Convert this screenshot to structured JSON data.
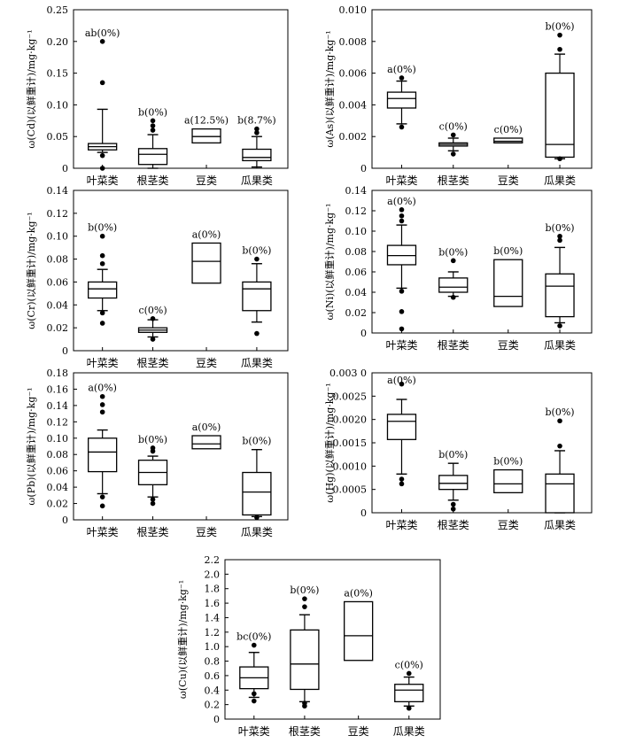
{
  "chart_data": [
    {
      "type": "boxplot",
      "ylabel": "ω(Cd)(以鲜重计)/mg·kg⁻¹",
      "ylim": [
        0,
        0.25
      ],
      "yticks": [
        "0",
        "0.05",
        "0.10",
        "0.15",
        "0.20",
        "0.25"
      ],
      "categories": [
        "叶菜类",
        "根茎类",
        "豆类",
        "瓜果类"
      ],
      "boxes": [
        {
          "q1": 0.029,
          "median": 0.034,
          "q3": 0.039,
          "whisker_low": 0.025,
          "whisker_high": 0.093,
          "outliers": [
            0.0,
            0.02,
            0.135,
            0.2
          ]
        },
        {
          "q1": 0.006,
          "median": 0.022,
          "q3": 0.031,
          "whisker_low": 0.0,
          "whisker_high": 0.053,
          "outliers": [
            0.06,
            0.067,
            0.075
          ]
        },
        {
          "q1": 0.04,
          "median": 0.05,
          "q3": 0.062
        },
        {
          "q1": 0.012,
          "median": 0.017,
          "q3": 0.03,
          "whisker_low": 0.002,
          "whisker_high": 0.05,
          "outliers": [
            0.056,
            0.062
          ]
        }
      ],
      "annotations": [
        "ab(0%)",
        "b(0%)",
        "a(12.5%)",
        "b(8.7%)"
      ]
    },
    {
      "type": "boxplot",
      "ylabel": "ω(As)(以鲜重计)/mg·kg⁻¹",
      "ylim": [
        0,
        0.01
      ],
      "yticks": [
        "0",
        "0.002",
        "0.004",
        "0.006",
        "0.008",
        "0.010"
      ],
      "categories": [
        "叶菜类",
        "根茎类",
        "豆类",
        "瓜果类"
      ],
      "boxes": [
        {
          "q1": 0.0038,
          "median": 0.0044,
          "q3": 0.0048,
          "whisker_low": 0.0028,
          "whisker_high": 0.0055,
          "outliers": [
            0.0026,
            0.0057
          ]
        },
        {
          "q1": 0.0014,
          "median": 0.0015,
          "q3": 0.0016,
          "whisker_low": 0.0011,
          "whisker_high": 0.0019,
          "outliers": [
            0.0009,
            0.0021
          ]
        },
        {
          "q1": 0.0016,
          "median": 0.0017,
          "q3": 0.0019
        },
        {
          "q1": 0.0007,
          "median": 0.0015,
          "q3": 0.006,
          "whisker_low": 0.0006,
          "whisker_high": 0.0072,
          "outliers": [
            0.0006,
            0.0075,
            0.0084
          ]
        }
      ],
      "annotations": [
        "a(0%)",
        "c(0%)",
        "c(0%)",
        "b(0%)"
      ]
    },
    {
      "type": "boxplot",
      "ylabel": "ω(Cr)(以鲜重计)/mg·kg⁻¹",
      "ylim": [
        0,
        0.14
      ],
      "yticks": [
        "0",
        "0.02",
        "0.04",
        "0.06",
        "0.08",
        "0.10",
        "0.12",
        "0.14"
      ],
      "categories": [
        "叶菜类",
        "根茎类",
        "豆类",
        "瓜果类"
      ],
      "boxes": [
        {
          "q1": 0.046,
          "median": 0.054,
          "q3": 0.06,
          "whisker_low": 0.035,
          "whisker_high": 0.071,
          "outliers": [
            0.024,
            0.033,
            0.076,
            0.083,
            0.1
          ]
        },
        {
          "q1": 0.016,
          "median": 0.018,
          "q3": 0.02,
          "whisker_low": 0.012,
          "whisker_high": 0.027,
          "outliers": [
            0.01,
            0.028
          ]
        },
        {
          "q1": 0.059,
          "median": 0.078,
          "q3": 0.094
        },
        {
          "q1": 0.035,
          "median": 0.054,
          "q3": 0.06,
          "whisker_low": 0.025,
          "whisker_high": 0.076,
          "outliers": [
            0.015,
            0.08
          ]
        }
      ],
      "annotations": [
        "b(0%)",
        "c(0%)",
        "a(0%)",
        "b(0%)"
      ]
    },
    {
      "type": "boxplot",
      "ylabel": "ω(Ni)(以鲜重计)/mg·kg⁻¹",
      "ylim": [
        0,
        0.14
      ],
      "yticks": [
        "0",
        "0.02",
        "0.04",
        "0.06",
        "0.08",
        "0.10",
        "0.12",
        "0.14"
      ],
      "categories": [
        "叶菜类",
        "根茎类",
        "豆类",
        "瓜果类"
      ],
      "boxes": [
        {
          "q1": 0.067,
          "median": 0.076,
          "q3": 0.086,
          "whisker_low": 0.044,
          "whisker_high": 0.106,
          "outliers": [
            0.004,
            0.021,
            0.041,
            0.11,
            0.115,
            0.121
          ]
        },
        {
          "q1": 0.04,
          "median": 0.045,
          "q3": 0.054,
          "whisker_low": 0.036,
          "whisker_high": 0.06,
          "outliers": [
            0.035,
            0.071
          ]
        },
        {
          "q1": 0.026,
          "median": 0.036,
          "q3": 0.072
        },
        {
          "q1": 0.016,
          "median": 0.046,
          "q3": 0.058,
          "whisker_low": 0.01,
          "whisker_high": 0.084,
          "outliers": [
            0.007,
            0.091,
            0.095
          ]
        }
      ],
      "annotations": [
        "a(0%)",
        "b(0%)",
        "b(0%)",
        "b(0%)"
      ]
    },
    {
      "type": "boxplot",
      "ylabel": "ω(Pb)(以鲜重计)/mg·kg⁻¹",
      "ylim": [
        0,
        0.18
      ],
      "yticks": [
        "0",
        "0.02",
        "0.04",
        "0.06",
        "0.08",
        "0.10",
        "0.12",
        "0.14",
        "0.16",
        "0.18"
      ],
      "categories": [
        "叶菜类",
        "根茎类",
        "豆类",
        "瓜果类"
      ],
      "boxes": [
        {
          "q1": 0.059,
          "median": 0.083,
          "q3": 0.1,
          "whisker_low": 0.032,
          "whisker_high": 0.11,
          "outliers": [
            0.017,
            0.028,
            0.132,
            0.141,
            0.151
          ]
        },
        {
          "q1": 0.043,
          "median": 0.058,
          "q3": 0.073,
          "whisker_low": 0.028,
          "whisker_high": 0.078,
          "outliers": [
            0.02,
            0.025,
            0.084,
            0.088
          ]
        },
        {
          "q1": 0.087,
          "median": 0.093,
          "q3": 0.103
        },
        {
          "q1": 0.006,
          "median": 0.034,
          "q3": 0.058,
          "whisker_low": 0.004,
          "whisker_high": 0.086,
          "outliers": [
            0.003
          ]
        }
      ],
      "annotations": [
        "a(0%)",
        "b(0%)",
        "a(0%)",
        "b(0%)"
      ]
    },
    {
      "type": "boxplot",
      "ylabel": "ω(Hg)(以鲜重计)/mg·kg⁻¹",
      "ylim": [
        0,
        0.003
      ],
      "yticks": [
        "0",
        "0.0005",
        "0.0010",
        "0.0015",
        "0.0020",
        "0.0025",
        "0.003 0"
      ],
      "categories": [
        "叶菜类",
        "根茎类",
        "豆类",
        "瓜果类"
      ],
      "boxes": [
        {
          "q1": 0.00157,
          "median": 0.00196,
          "q3": 0.00211,
          "whisker_low": 0.00083,
          "whisker_high": 0.00243,
          "outliers": [
            0.00062,
            0.00072,
            0.00276
          ]
        },
        {
          "q1": 0.0005,
          "median": 0.00063,
          "q3": 0.0008,
          "whisker_low": 0.00027,
          "whisker_high": 0.00106,
          "outliers": [
            8e-05,
            0.00018
          ]
        },
        {
          "q1": 0.00043,
          "median": 0.00062,
          "q3": 0.00092
        },
        {
          "q1": 0.0,
          "median": 0.00062,
          "q3": 0.00083,
          "whisker_low": 0.0,
          "whisker_high": 0.00133,
          "outliers": [
            0.00143,
            0.00197
          ]
        }
      ],
      "annotations": [
        "a(0%)",
        "b(0%)",
        "b(0%)",
        "b(0%)"
      ]
    },
    {
      "type": "boxplot",
      "ylabel": "ω(Cu)(以鲜重计)/mg·kg⁻¹",
      "ylim": [
        0,
        2.2
      ],
      "yticks": [
        "0",
        "0.2",
        "0.4",
        "0.6",
        "0.8",
        "1.0",
        "1.2",
        "1.4",
        "1.6",
        "1.8",
        "2.0",
        "2.2"
      ],
      "categories": [
        "叶菜类",
        "根茎类",
        "豆类",
        "瓜果类"
      ],
      "boxes": [
        {
          "q1": 0.42,
          "median": 0.57,
          "q3": 0.72,
          "whisker_low": 0.3,
          "whisker_high": 0.92,
          "outliers": [
            0.25,
            0.35,
            1.02
          ]
        },
        {
          "q1": 0.41,
          "median": 0.76,
          "q3": 1.23,
          "whisker_low": 0.24,
          "whisker_high": 1.44,
          "outliers": [
            0.18,
            0.22,
            1.55,
            1.66
          ]
        },
        {
          "q1": 0.81,
          "median": 1.15,
          "q3": 1.62
        },
        {
          "q1": 0.24,
          "median": 0.4,
          "q3": 0.48,
          "whisker_low": 0.18,
          "whisker_high": 0.58,
          "outliers": [
            0.15,
            0.63
          ]
        }
      ],
      "annotations": [
        "bc(0%)",
        "b(0%)",
        "a(0%)",
        "c(0%)"
      ]
    }
  ]
}
